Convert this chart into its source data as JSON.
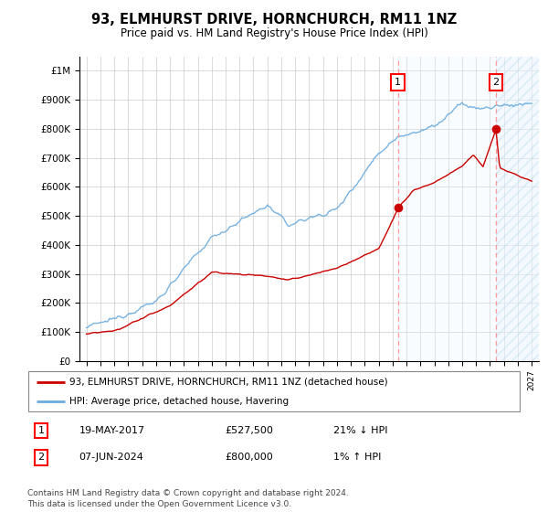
{
  "title": "93, ELMHURST DRIVE, HORNCHURCH, RM11 1NZ",
  "subtitle": "Price paid vs. HM Land Registry's House Price Index (HPI)",
  "ylim": [
    0,
    1050000
  ],
  "yticks": [
    0,
    100000,
    200000,
    300000,
    400000,
    500000,
    600000,
    700000,
    800000,
    900000,
    1000000
  ],
  "ytick_labels": [
    "£0",
    "£100K",
    "£200K",
    "£300K",
    "£400K",
    "£500K",
    "£600K",
    "£700K",
    "£800K",
    "£900K",
    "£1M"
  ],
  "hpi_color": "#6aabdf",
  "price_color": "#cc0000",
  "marker1_date": 2017.38,
  "marker1_price": 527500,
  "marker2_date": 2024.43,
  "marker2_price": 800000,
  "legend_line1": "93, ELMHURST DRIVE, HORNCHURCH, RM11 1NZ (detached house)",
  "legend_line2": "HPI: Average price, detached house, Havering",
  "footer": "Contains HM Land Registry data © Crown copyright and database right 2024.\nThis data is licensed under the Open Government Licence v3.0.",
  "hatch_color": "#ddeeff",
  "shade_color": "#e8f4ff",
  "vline_color": "#ff9999",
  "xlim_start": 1994.5,
  "xlim_end": 2027.5,
  "marker1_text": "19-MAY-2017",
  "marker1_price_str": "£527,500",
  "marker1_pct": "21% ↓ HPI",
  "marker2_text": "07-JUN-2024",
  "marker2_price_str": "£800,000",
  "marker2_pct": "1% ↑ HPI"
}
